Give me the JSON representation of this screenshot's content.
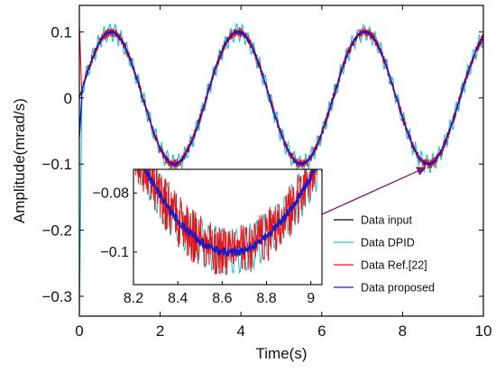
{
  "chart_data": {
    "type": "line",
    "title": "",
    "xlabel": "Time(s)",
    "ylabel": "Amplitude(mrad/s)",
    "xlim": [
      0,
      10
    ],
    "ylim": [
      -0.33,
      0.14
    ],
    "grid": false,
    "xticks": [
      0,
      2,
      4,
      6,
      8,
      10
    ],
    "xtick_labels": [
      "0",
      "2",
      "4",
      "6",
      "8",
      "10"
    ],
    "yticks": [
      0.1,
      0,
      -0.1,
      -0.2,
      -0.3
    ],
    "ytick_labels": [
      "0.1",
      "0",
      "−0.1",
      "−0.2",
      "−0.3"
    ],
    "signal": {
      "amplitude": 0.1,
      "period_s": 3.14,
      "initial_value": 0.0
    },
    "series": [
      {
        "name": "Data input",
        "color": "#000000",
        "noise": 0.0
      },
      {
        "name": "Data DPID",
        "color": "#22c5c5",
        "noise": 0.01,
        "oscillation_freq_hz": 7.0
      },
      {
        "name": "Data Ref.[22]",
        "color": "#e8141b",
        "noise": 0.007
      },
      {
        "name": "Data proposed",
        "color": "#1a1acd",
        "noise": 0.002
      }
    ],
    "legend_position": "bottom-right",
    "inset": {
      "xlim": [
        8.2,
        9.05
      ],
      "ylim": [
        -0.111,
        -0.072
      ],
      "xticks": [
        8.2,
        8.4,
        8.6,
        8.8,
        9
      ],
      "xtick_labels": [
        "8.2",
        "8.4",
        "8.6",
        "8.8",
        "9"
      ],
      "yticks": [
        -0.08,
        -0.1
      ],
      "ytick_labels": [
        "−0.08",
        "−0.1"
      ],
      "arrow_target": {
        "x": 8.63,
        "y": -0.1
      }
    }
  }
}
